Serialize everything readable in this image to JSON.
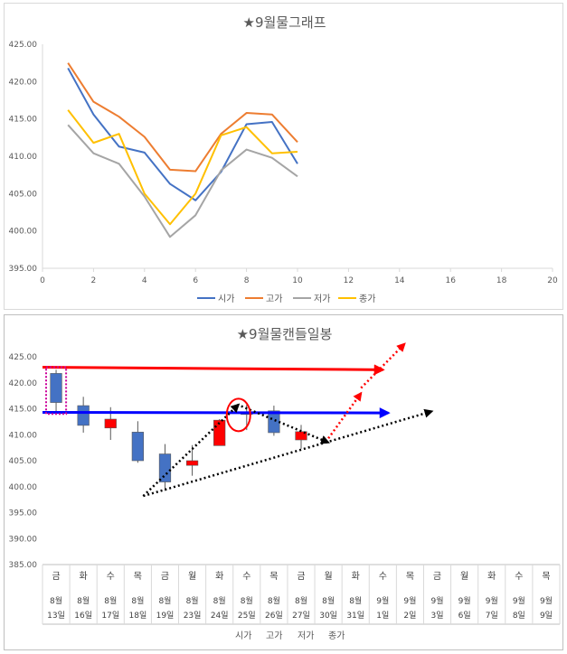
{
  "chart_data": [
    {
      "type": "line",
      "title": "★9월물그래프",
      "xlim": [
        0,
        20
      ],
      "ylim": [
        395,
        425
      ],
      "x_ticks": [
        "0",
        "2",
        "4",
        "6",
        "8",
        "10",
        "12",
        "14",
        "16",
        "18",
        "20"
      ],
      "y_ticks": [
        "395.00",
        "400.00",
        "405.00",
        "410.00",
        "415.00",
        "420.00",
        "425.00"
      ],
      "x": [
        1,
        2,
        3,
        4,
        5,
        6,
        7,
        8,
        9,
        10
      ],
      "series": [
        {
          "name": "시가",
          "color": "#4472c4",
          "values": [
            421.8,
            415.6,
            411.3,
            410.5,
            406.3,
            404.1,
            407.9,
            414.3,
            414.6,
            409.0
          ]
        },
        {
          "name": "고가",
          "color": "#ed7d31",
          "values": [
            422.5,
            417.3,
            415.3,
            412.6,
            408.2,
            408.0,
            413.0,
            415.8,
            415.6,
            411.9
          ]
        },
        {
          "name": "저가",
          "color": "#a5a5a5",
          "values": [
            414.2,
            410.4,
            409.0,
            404.6,
            399.2,
            402.1,
            408.1,
            410.9,
            409.8,
            407.3
          ]
        },
        {
          "name": "종가",
          "color": "#ffc000",
          "values": [
            416.2,
            411.8,
            413.0,
            405.0,
            400.9,
            405.0,
            412.8,
            413.9,
            410.4,
            410.6
          ]
        }
      ],
      "grid": false,
      "legend_position": "bottom"
    },
    {
      "type": "candlestick",
      "title": "★9월물캔들일봉",
      "ylim": [
        385,
        425
      ],
      "y_ticks": [
        "385.00",
        "390.00",
        "395.00",
        "400.00",
        "405.00",
        "410.00",
        "415.00",
        "420.00",
        "425.00"
      ],
      "categories": [
        {
          "day": "금",
          "month": "8월",
          "date": "13일"
        },
        {
          "day": "화",
          "month": "8월",
          "date": "16일"
        },
        {
          "day": "수",
          "month": "8월",
          "date": "17일"
        },
        {
          "day": "목",
          "month": "8월",
          "date": "18일"
        },
        {
          "day": "금",
          "month": "8월",
          "date": "19일"
        },
        {
          "day": "월",
          "month": "8월",
          "date": "23일"
        },
        {
          "day": "화",
          "month": "8월",
          "date": "24일"
        },
        {
          "day": "수",
          "month": "8월",
          "date": "25일"
        },
        {
          "day": "목",
          "month": "8월",
          "date": "26일"
        },
        {
          "day": "금",
          "month": "8월",
          "date": "27일"
        },
        {
          "day": "월",
          "month": "8월",
          "date": "30일"
        },
        {
          "day": "화",
          "month": "8월",
          "date": "31일"
        },
        {
          "day": "수",
          "month": "9월",
          "date": "1일"
        },
        {
          "day": "목",
          "month": "9월",
          "date": "2일"
        },
        {
          "day": "금",
          "month": "9월",
          "date": "3일"
        },
        {
          "day": "월",
          "month": "9월",
          "date": "6일"
        },
        {
          "day": "화",
          "month": "9월",
          "date": "7일"
        },
        {
          "day": "수",
          "month": "9월",
          "date": "8일"
        },
        {
          "day": "목",
          "month": "9월",
          "date": "9일"
        }
      ],
      "candles": [
        {
          "open": 421.8,
          "high": 422.5,
          "low": 414.2,
          "close": 416.2
        },
        {
          "open": 415.6,
          "high": 417.3,
          "low": 410.4,
          "close": 411.8
        },
        {
          "open": 411.3,
          "high": 415.3,
          "low": 409.0,
          "close": 413.0
        },
        {
          "open": 410.5,
          "high": 412.6,
          "low": 404.6,
          "close": 405.0
        },
        {
          "open": 406.3,
          "high": 408.2,
          "low": 399.2,
          "close": 400.9
        },
        {
          "open": 404.1,
          "high": 408.0,
          "low": 402.1,
          "close": 405.0
        },
        {
          "open": 407.9,
          "high": 413.0,
          "low": 408.1,
          "close": 412.8
        },
        {
          "open": 414.3,
          "high": 415.8,
          "low": 410.9,
          "close": 413.9
        },
        {
          "open": 414.6,
          "high": 415.6,
          "low": 409.8,
          "close": 410.4
        },
        {
          "open": 409.0,
          "high": 411.9,
          "low": 407.3,
          "close": 410.6
        }
      ],
      "up_color": "#ff0000",
      "down_color": "#4472c4",
      "legend": [
        "시가",
        "고가",
        "저가",
        "종가"
      ],
      "legend_position": "bottom",
      "annotations": [
        {
          "type": "arrow",
          "color": "#ff0000",
          "style": "solid",
          "from": [
            0,
            423.0
          ],
          "to": [
            12.5,
            422.5
          ]
        },
        {
          "type": "arrow",
          "color": "#0000ff",
          "style": "solid",
          "from": [
            0,
            414.3
          ],
          "to": [
            12.7,
            414.2
          ]
        },
        {
          "type": "arrow",
          "color": "#000000",
          "style": "dotted",
          "from": [
            3.7,
            398.2
          ],
          "to": [
            7.2,
            415.8
          ]
        },
        {
          "type": "arrow",
          "color": "#000000",
          "style": "dotted",
          "from": [
            7.3,
            415.5
          ],
          "to": [
            10.5,
            408.5
          ]
        },
        {
          "type": "arrow",
          "color": "#000000",
          "style": "dotted",
          "from": [
            3.7,
            398.2
          ],
          "to": [
            14.3,
            414.5
          ]
        },
        {
          "type": "arrow",
          "color": "#ff0000",
          "style": "dotted",
          "from": [
            10.5,
            409.3
          ],
          "to": [
            11.7,
            418.0
          ]
        },
        {
          "type": "arrow",
          "color": "#ff0000",
          "style": "dotted",
          "from": [
            11.7,
            419.0
          ],
          "to": [
            13.3,
            427.5
          ]
        },
        {
          "type": "ellipse",
          "color": "#ff0000",
          "at": [
            7.2,
            413.8
          ]
        },
        {
          "type": "dotted-box",
          "color": "#cc0099",
          "range": [
            0,
            1
          ],
          "ylim": [
            414.0,
            423.0
          ]
        }
      ]
    }
  ]
}
